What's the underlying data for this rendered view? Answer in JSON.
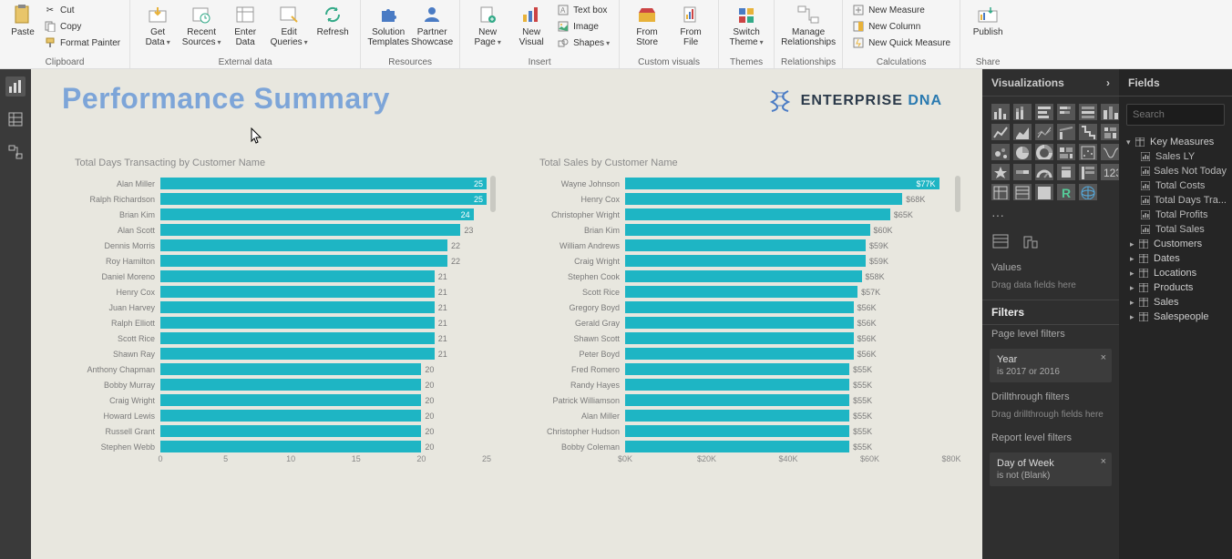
{
  "ribbon": {
    "groups": {
      "clipboard": {
        "label": "Clipboard",
        "paste": "Paste",
        "cut": "Cut",
        "copy": "Copy",
        "format_painter": "Format Painter"
      },
      "external_data": {
        "label": "External data",
        "get_data": "Get\nData",
        "recent_sources": "Recent\nSources",
        "enter_data": "Enter\nData",
        "edit_queries": "Edit\nQueries",
        "refresh": "Refresh"
      },
      "resources": {
        "label": "Resources",
        "solution_templates": "Solution\nTemplates",
        "partner_showcase": "Partner\nShowcase"
      },
      "insert": {
        "label": "Insert",
        "new_page": "New\nPage",
        "new_visual": "New\nVisual",
        "text_box": "Text box",
        "image": "Image",
        "shapes": "Shapes"
      },
      "custom_visuals": {
        "label": "Custom visuals",
        "from_store": "From\nStore",
        "from_file": "From\nFile"
      },
      "themes": {
        "label": "Themes",
        "switch_theme": "Switch\nTheme"
      },
      "relationships": {
        "label": "Relationships",
        "manage": "Manage\nRelationships"
      },
      "calculations": {
        "label": "Calculations",
        "new_measure": "New Measure",
        "new_column": "New Column",
        "new_quick_measure": "New Quick Measure"
      },
      "share": {
        "label": "Share",
        "publish": "Publish"
      }
    }
  },
  "page": {
    "title": "Performance Summary",
    "logo_dark": "ENTERPRISE ",
    "logo_blue": "DNA"
  },
  "chart1": {
    "title": "Total Days Transacting by Customer Name",
    "bar_color": "#1eb5c4",
    "highlight_color": "#1eb5c4",
    "max": 25,
    "xticks": [
      0,
      5,
      10,
      15,
      20,
      25
    ],
    "bars": [
      {
        "label": "Alan Miller",
        "value": 25,
        "display": "25",
        "inside": true
      },
      {
        "label": "Ralph Richardson",
        "value": 25,
        "display": "25",
        "inside": true
      },
      {
        "label": "Brian Kim",
        "value": 24,
        "display": "24",
        "inside": true
      },
      {
        "label": "Alan Scott",
        "value": 23,
        "display": "23",
        "inside": false
      },
      {
        "label": "Dennis Morris",
        "value": 22,
        "display": "22",
        "inside": false
      },
      {
        "label": "Roy Hamilton",
        "value": 22,
        "display": "22",
        "inside": false
      },
      {
        "label": "Daniel Moreno",
        "value": 21,
        "display": "21",
        "inside": false
      },
      {
        "label": "Henry Cox",
        "value": 21,
        "display": "21",
        "inside": false
      },
      {
        "label": "Juan Harvey",
        "value": 21,
        "display": "21",
        "inside": false
      },
      {
        "label": "Ralph Elliott",
        "value": 21,
        "display": "21",
        "inside": false
      },
      {
        "label": "Scott Rice",
        "value": 21,
        "display": "21",
        "inside": false
      },
      {
        "label": "Shawn Ray",
        "value": 21,
        "display": "21",
        "inside": false
      },
      {
        "label": "Anthony Chapman",
        "value": 20,
        "display": "20",
        "inside": false
      },
      {
        "label": "Bobby Murray",
        "value": 20,
        "display": "20",
        "inside": false
      },
      {
        "label": "Craig Wright",
        "value": 20,
        "display": "20",
        "inside": false
      },
      {
        "label": "Howard Lewis",
        "value": 20,
        "display": "20",
        "inside": false
      },
      {
        "label": "Russell Grant",
        "value": 20,
        "display": "20",
        "inside": false
      },
      {
        "label": "Stephen Webb",
        "value": 20,
        "display": "20",
        "inside": false
      }
    ]
  },
  "chart2": {
    "title": "Total Sales by Customer Name",
    "bar_color": "#1eb5c4",
    "max": 80,
    "xticks_labels": [
      "$0K",
      "$20K",
      "$40K",
      "$60K",
      "$80K"
    ],
    "xticks_pos": [
      0,
      20,
      40,
      60,
      80
    ],
    "bars": [
      {
        "label": "Wayne Johnson",
        "value": 77,
        "display": "$77K",
        "inside": true
      },
      {
        "label": "Henry Cox",
        "value": 68,
        "display": "$68K",
        "inside": false
      },
      {
        "label": "Christopher Wright",
        "value": 65,
        "display": "$65K",
        "inside": false
      },
      {
        "label": "Brian Kim",
        "value": 60,
        "display": "$60K",
        "inside": false
      },
      {
        "label": "William Andrews",
        "value": 59,
        "display": "$59K",
        "inside": false
      },
      {
        "label": "Craig Wright",
        "value": 59,
        "display": "$59K",
        "inside": false
      },
      {
        "label": "Stephen Cook",
        "value": 58,
        "display": "$58K",
        "inside": false
      },
      {
        "label": "Scott Rice",
        "value": 57,
        "display": "$57K",
        "inside": false
      },
      {
        "label": "Gregory Boyd",
        "value": 56,
        "display": "$56K",
        "inside": false
      },
      {
        "label": "Gerald Gray",
        "value": 56,
        "display": "$56K",
        "inside": false
      },
      {
        "label": "Shawn Scott",
        "value": 56,
        "display": "$56K",
        "inside": false
      },
      {
        "label": "Peter Boyd",
        "value": 56,
        "display": "$56K",
        "inside": false
      },
      {
        "label": "Fred Romero",
        "value": 55,
        "display": "$55K",
        "inside": false
      },
      {
        "label": "Randy Hayes",
        "value": 55,
        "display": "$55K",
        "inside": false
      },
      {
        "label": "Patrick Williamson",
        "value": 55,
        "display": "$55K",
        "inside": false
      },
      {
        "label": "Alan Miller",
        "value": 55,
        "display": "$55K",
        "inside": false
      },
      {
        "label": "Christopher Hudson",
        "value": 55,
        "display": "$55K",
        "inside": false
      },
      {
        "label": "Bobby Coleman",
        "value": 55,
        "display": "$55K",
        "inside": false
      }
    ]
  },
  "vis_pane": {
    "title": "Visualizations",
    "values_label": "Values",
    "values_hint": "Drag data fields here",
    "filters_label": "Filters",
    "page_filters_label": "Page level filters",
    "drill_label": "Drillthrough filters",
    "drill_hint": "Drag drillthrough fields here",
    "report_filters_label": "Report level filters",
    "filter1": {
      "name": "Year",
      "value": "is 2017 or 2016"
    },
    "filter2": {
      "name": "Day of Week",
      "value": "is not (Blank)"
    }
  },
  "fields_pane": {
    "title": "Fields",
    "search_placeholder": "Search",
    "key_measures": {
      "label": "Key Measures",
      "items": [
        "Sales LY",
        "Sales Not Today",
        "Total Costs",
        "Total Days Tra...",
        "Total Profits",
        "Total Sales"
      ]
    },
    "tables": [
      "Customers",
      "Dates",
      "Locations",
      "Products",
      "Sales",
      "Salespeople"
    ]
  }
}
